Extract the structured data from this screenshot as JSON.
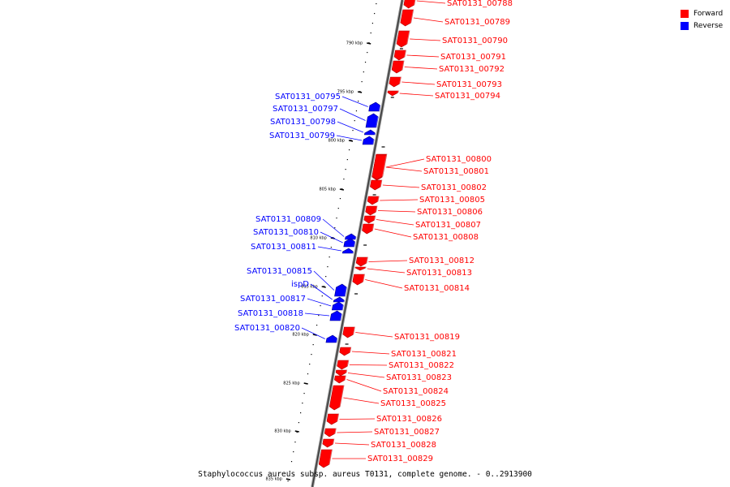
{
  "legend": {
    "forward_label": "Forward",
    "reverse_label": "Reverse",
    "forward_color": "#ff0000",
    "reverse_color": "#0000ff"
  },
  "caption": "Staphylococcus aureus subsp. aureus T0131, complete genome. - 0..2913900",
  "ticks": [
    {
      "label": "790 kbp"
    },
    {
      "label": "795 kbp"
    },
    {
      "label": "800 kbp"
    },
    {
      "label": "805 kbp"
    },
    {
      "label": "810 kbp"
    },
    {
      "label": "815 kbp"
    },
    {
      "label": "820 kbp"
    },
    {
      "label": "825 kbp"
    },
    {
      "label": "830 kbp"
    },
    {
      "label": "835 kbp"
    }
  ],
  "genes": [
    {
      "name": "SAT0131_00788",
      "strand": "forward"
    },
    {
      "name": "SAT0131_00789",
      "strand": "forward"
    },
    {
      "name": "SAT0131_00790",
      "strand": "forward"
    },
    {
      "name": "SAT0131_00791",
      "strand": "forward"
    },
    {
      "name": "SAT0131_00792",
      "strand": "forward"
    },
    {
      "name": "SAT0131_00793",
      "strand": "forward"
    },
    {
      "name": "SAT0131_00794",
      "strand": "forward"
    },
    {
      "name": "SAT0131_00795",
      "strand": "reverse"
    },
    {
      "name": "SAT0131_00797",
      "strand": "reverse"
    },
    {
      "name": "SAT0131_00798",
      "strand": "reverse"
    },
    {
      "name": "SAT0131_00799",
      "strand": "reverse"
    },
    {
      "name": "SAT0131_00800",
      "strand": "forward"
    },
    {
      "name": "SAT0131_00801",
      "strand": "forward"
    },
    {
      "name": "SAT0131_00802",
      "strand": "forward"
    },
    {
      "name": "SAT0131_00805",
      "strand": "forward"
    },
    {
      "name": "SAT0131_00806",
      "strand": "forward"
    },
    {
      "name": "SAT0131_00807",
      "strand": "forward"
    },
    {
      "name": "SAT0131_00808",
      "strand": "forward"
    },
    {
      "name": "SAT0131_00809",
      "strand": "reverse"
    },
    {
      "name": "SAT0131_00810",
      "strand": "reverse"
    },
    {
      "name": "SAT0131_00811",
      "strand": "reverse"
    },
    {
      "name": "SAT0131_00812",
      "strand": "forward"
    },
    {
      "name": "SAT0131_00813",
      "strand": "forward"
    },
    {
      "name": "SAT0131_00814",
      "strand": "forward"
    },
    {
      "name": "SAT0131_00815",
      "strand": "reverse"
    },
    {
      "name": "ispD",
      "strand": "reverse"
    },
    {
      "name": "SAT0131_00817",
      "strand": "reverse"
    },
    {
      "name": "SAT0131_00818",
      "strand": "reverse"
    },
    {
      "name": "SAT0131_00820",
      "strand": "reverse"
    },
    {
      "name": "SAT0131_00819",
      "strand": "forward"
    },
    {
      "name": "SAT0131_00821",
      "strand": "forward"
    },
    {
      "name": "SAT0131_00822",
      "strand": "forward"
    },
    {
      "name": "SAT0131_00823",
      "strand": "forward"
    },
    {
      "name": "SAT0131_00824",
      "strand": "forward"
    },
    {
      "name": "SAT0131_00825",
      "strand": "forward"
    },
    {
      "name": "SAT0131_00826",
      "strand": "forward"
    },
    {
      "name": "SAT0131_00827",
      "strand": "forward"
    },
    {
      "name": "SAT0131_00828",
      "strand": "forward"
    },
    {
      "name": "SAT0131_00829",
      "strand": "forward"
    }
  ]
}
